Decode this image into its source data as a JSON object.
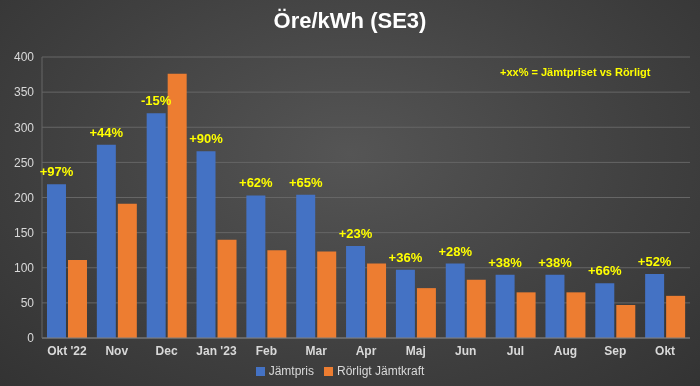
{
  "chart_data": {
    "type": "bar",
    "title": "Öre/kWh (SE3)",
    "note": "+xx% = Jämtpriset vs Rörligt",
    "categories": [
      "Okt '22",
      "Nov",
      "Dec",
      "Jan '23",
      "Feb",
      "Mar",
      "Apr",
      "Maj",
      "Jun",
      "Jul",
      "Aug",
      "Sep",
      "Okt"
    ],
    "series": [
      {
        "name": "Jämtpris",
        "color": "#4472c4",
        "values": [
          219,
          275,
          320,
          266,
          203,
          204,
          131,
          97,
          106,
          90,
          90,
          78,
          91
        ]
      },
      {
        "name": "Rörligt Jämtkraft",
        "color": "#ed7d31",
        "values": [
          111,
          191,
          376,
          140,
          125,
          123,
          106,
          71,
          83,
          65,
          65,
          47,
          60
        ]
      }
    ],
    "annotations": [
      "+97%",
      "+44%",
      "-15%",
      "+90%",
      "+62%",
      "+65%",
      "+23%",
      "+36%",
      "+28%",
      "+38%",
      "+38%",
      "+66%",
      "+52%"
    ],
    "ylim": [
      0,
      400
    ],
    "yticks": [
      0,
      50,
      100,
      150,
      200,
      250,
      300,
      350,
      400
    ],
    "grid": true,
    "legend": "bottom"
  }
}
